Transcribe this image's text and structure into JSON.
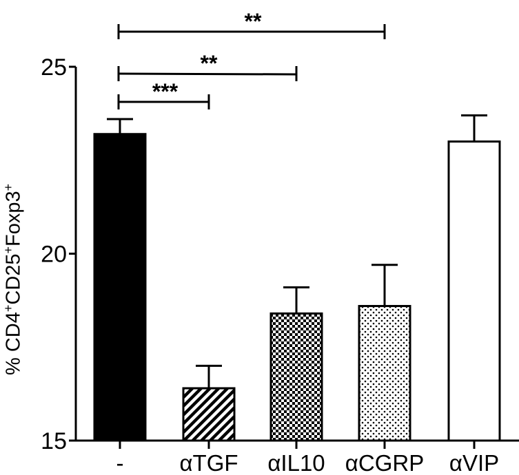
{
  "chart_data": {
    "type": "bar",
    "title": "",
    "xlabel": "",
    "ylabel": "% CD4+CD25+Foxp3+",
    "ylabel_parts": [
      "% CD4",
      "+",
      "CD25",
      "+",
      "Foxp3",
      "+"
    ],
    "ylim": [
      15,
      25
    ],
    "yticks": [
      15,
      20,
      25
    ],
    "grid": false,
    "categories": [
      "-",
      "αTGF",
      "αIL10",
      "αCGRP",
      "αVIP"
    ],
    "values": [
      23.2,
      16.4,
      18.4,
      18.6,
      23.0
    ],
    "error_upper": [
      23.6,
      17.0,
      19.1,
      19.7,
      23.7
    ],
    "fills": [
      "solid-black",
      "diagonal-hatch",
      "checkerboard",
      "dots",
      "white"
    ],
    "significance": [
      {
        "from": "-",
        "to": "αTGF",
        "label": "***"
      },
      {
        "from": "-",
        "to": "αIL10",
        "label": "**"
      },
      {
        "from": "-",
        "to": "αCGRP",
        "label": "**"
      }
    ]
  }
}
